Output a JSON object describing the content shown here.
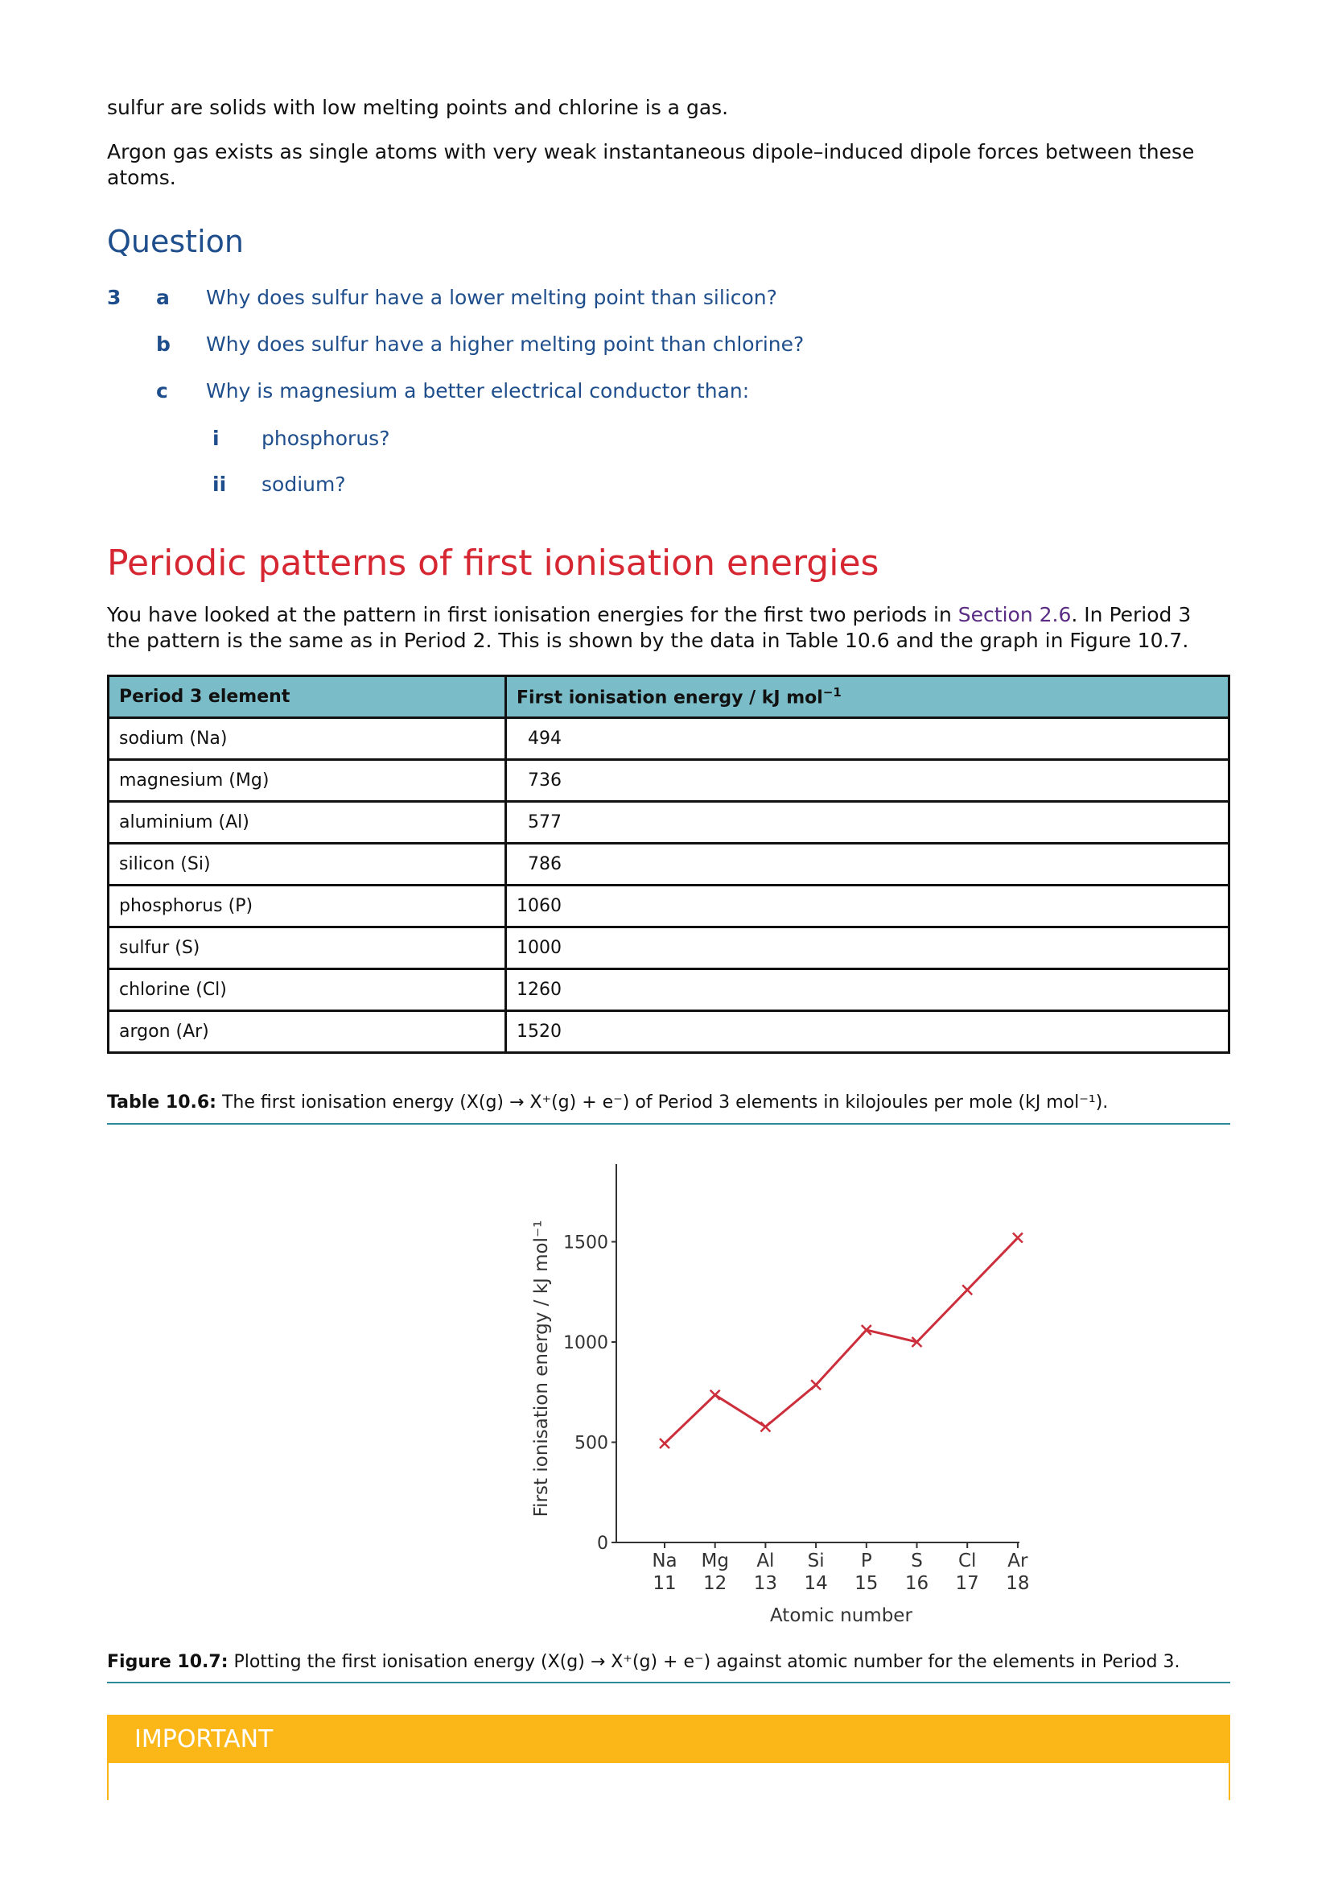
{
  "intro": {
    "line1": "sulfur are solids with low melting points and chlorine is a gas.",
    "line2": "Argon gas exists as single atoms with very weak instantaneous dipole–induced dipole forces between these atoms."
  },
  "question": {
    "heading": "Question",
    "number": "3",
    "parts": [
      {
        "label": "a",
        "text": "Why does sulfur have a lower melting point than silicon?"
      },
      {
        "label": "b",
        "text": "Why does sulfur have a higher melting point than chlorine?"
      },
      {
        "label": "c",
        "text": "Why is magnesium a better electrical conductor than:"
      }
    ],
    "subparts": [
      {
        "label": "i",
        "text": "phosphorus?"
      },
      {
        "label": "ii",
        "text": "sodium?"
      }
    ]
  },
  "section": {
    "heading": "Periodic patterns of first ionisation energies",
    "para_before_link": "You have looked at the pattern in first ionisation energies for the first two periods in ",
    "link": "Section 2.6",
    "para_after_link": ". In Period 3 the pattern is the same as in Period 2. This is shown by the data in Table 10.6 and the graph in Figure 10.7."
  },
  "table": {
    "headers": [
      "Period 3 element",
      "First ionisation energy / kJ mol",
      "−1"
    ],
    "rows": [
      [
        "sodium (Na)",
        "494"
      ],
      [
        "magnesium (Mg)",
        "736"
      ],
      [
        "aluminium (Al)",
        "577"
      ],
      [
        "silicon (Si)",
        "786"
      ],
      [
        "phosphorus (P)",
        "1060"
      ],
      [
        "sulfur (S)",
        "1000"
      ],
      [
        "chlorine (Cl)",
        "1260"
      ],
      [
        "argon (Ar)",
        "1520"
      ]
    ],
    "caption_label": "Table 10.6:",
    "caption_text": " The first ionisation energy (X(g) → X⁺(g) + e⁻) of Period 3 elements in kilojoules per mole (kJ mol⁻¹)."
  },
  "chart_data": {
    "type": "line",
    "ylabel": "First ionisation energy / kJ mol⁻¹",
    "xlabel": "Atomic number",
    "categories": [
      {
        "symbol": "Na",
        "z": "11"
      },
      {
        "symbol": "Mg",
        "z": "12"
      },
      {
        "symbol": "Al",
        "z": "13"
      },
      {
        "symbol": "Si",
        "z": "14"
      },
      {
        "symbol": "P",
        "z": "15"
      },
      {
        "symbol": "S",
        "z": "16"
      },
      {
        "symbol": "Cl",
        "z": "17"
      },
      {
        "symbol": "Ar",
        "z": "18"
      }
    ],
    "values": [
      494,
      736,
      577,
      786,
      1060,
      1000,
      1260,
      1520
    ],
    "yticks": [
      0,
      500,
      1000,
      1500
    ],
    "ylim": [
      0,
      1800
    ],
    "marker": "x",
    "color": "#cc2f3b"
  },
  "figure": {
    "caption_label": "Figure 10.7:",
    "caption_text": " Plotting the first ionisation energy (X(g) → X⁺(g) + e⁻) against atomic number for the elements in Period 3."
  },
  "important": {
    "label": "IMPORTANT"
  }
}
